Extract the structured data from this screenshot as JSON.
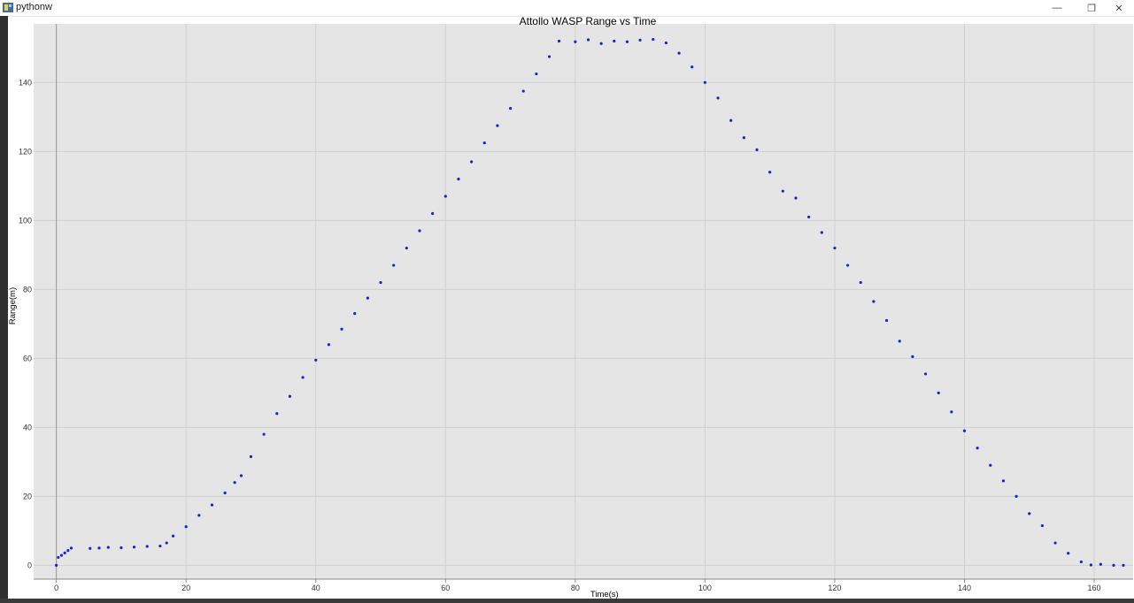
{
  "window": {
    "title": "pythonw",
    "minimize_glyph": "—",
    "restore_glyph": "❐",
    "close_glyph": "✕"
  },
  "chart_data": {
    "type": "scatter",
    "title": "Attollo WASP Range vs Time",
    "xlabel": "Time(s)",
    "ylabel": "Range(m)",
    "xlim": [
      -3.5,
      166
    ],
    "ylim": [
      -4,
      157
    ],
    "x_ticks": [
      0,
      20,
      40,
      60,
      80,
      100,
      120,
      140,
      160
    ],
    "y_ticks": [
      0,
      20,
      40,
      60,
      80,
      100,
      120,
      140
    ],
    "grid": true,
    "colors": {
      "points": "#1a22cc",
      "background": "#e5e5e5",
      "grid": "#d0d0d0"
    },
    "series": [
      {
        "points": [
          [
            0,
            0
          ],
          [
            0.3,
            2.3
          ],
          [
            0.8,
            2.9
          ],
          [
            1.3,
            3.6
          ],
          [
            1.8,
            4.3
          ],
          [
            2.3,
            5.0
          ],
          [
            5.2,
            4.9
          ],
          [
            6.6,
            5.0
          ],
          [
            8,
            5.2
          ],
          [
            10,
            5.1
          ],
          [
            12,
            5.3
          ],
          [
            14,
            5.5
          ],
          [
            16,
            5.6
          ],
          [
            17,
            6.5
          ],
          [
            18,
            8.5
          ],
          [
            20,
            11.2
          ],
          [
            22,
            14.5
          ],
          [
            24,
            17.5
          ],
          [
            26,
            21
          ],
          [
            27.5,
            24
          ],
          [
            28.5,
            26
          ],
          [
            30,
            31.5
          ],
          [
            32,
            38
          ],
          [
            34,
            44
          ],
          [
            36,
            49
          ],
          [
            38,
            54.5
          ],
          [
            40,
            59.5
          ],
          [
            42,
            64
          ],
          [
            44,
            68.5
          ],
          [
            46,
            73
          ],
          [
            48,
            77.5
          ],
          [
            50,
            82
          ],
          [
            52,
            87
          ],
          [
            54,
            92
          ],
          [
            56,
            97
          ],
          [
            58,
            102
          ],
          [
            60,
            107
          ],
          [
            62,
            112
          ],
          [
            64,
            117
          ],
          [
            66,
            122.5
          ],
          [
            68,
            127.5
          ],
          [
            70,
            132.5
          ],
          [
            72,
            137.5
          ],
          [
            74,
            142.5
          ],
          [
            76,
            147.5
          ],
          [
            77.5,
            152
          ],
          [
            80,
            151.8
          ],
          [
            82,
            152.4
          ],
          [
            84,
            151.3
          ],
          [
            86,
            152
          ],
          [
            88,
            151.8
          ],
          [
            90,
            152.3
          ],
          [
            92,
            152.5
          ],
          [
            94,
            151.5
          ],
          [
            96,
            148.5
          ],
          [
            98,
            144.5
          ],
          [
            100,
            140
          ],
          [
            102,
            135.5
          ],
          [
            104,
            129
          ],
          [
            106,
            124
          ],
          [
            108,
            120.5
          ],
          [
            110,
            114
          ],
          [
            112,
            108.5
          ],
          [
            114,
            106.5
          ],
          [
            116,
            101
          ],
          [
            118,
            96.5
          ],
          [
            120,
            92
          ],
          [
            122,
            87
          ],
          [
            124,
            82
          ],
          [
            126,
            76.5
          ],
          [
            128,
            71
          ],
          [
            130,
            65
          ],
          [
            132,
            60.5
          ],
          [
            134,
            55.5
          ],
          [
            136,
            50
          ],
          [
            138,
            44.5
          ],
          [
            140,
            39
          ],
          [
            142,
            34
          ],
          [
            144,
            29
          ],
          [
            146,
            24.5
          ],
          [
            148,
            20
          ],
          [
            150,
            15
          ],
          [
            152,
            11.5
          ],
          [
            154,
            6.5
          ],
          [
            156,
            3.5
          ],
          [
            158,
            1
          ],
          [
            159.5,
            0.1
          ],
          [
            161,
            0.3
          ],
          [
            163,
            0
          ],
          [
            164.5,
            0
          ]
        ]
      }
    ]
  }
}
